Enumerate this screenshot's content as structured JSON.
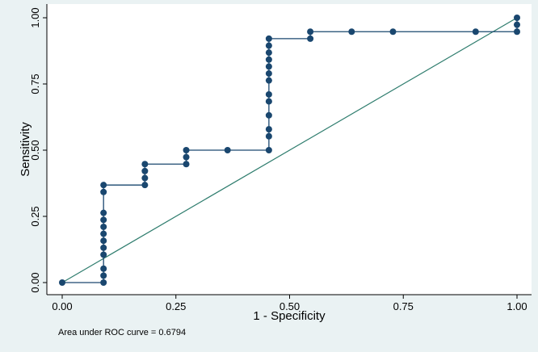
{
  "chart_data": {
    "type": "line",
    "xlabel": "1 - Specificity",
    "ylabel": "Sensitivity",
    "xlim": [
      0,
      1
    ],
    "ylim": [
      0,
      1
    ],
    "x_ticks": [
      "0.00",
      "0.25",
      "0.50",
      "0.75",
      "1.00"
    ],
    "y_ticks": [
      "0.00",
      "0.25",
      "0.50",
      "0.75",
      "1.00"
    ],
    "grid": false,
    "legend": "none",
    "note": "Area under ROC curve = 0.6794",
    "colors": {
      "curve": "#1a476f",
      "reference": "#2f7d6e",
      "plot_background": "#ffffff",
      "page_background": "#eaf2f3"
    },
    "series": [
      {
        "values": [
          [
            0,
            0
          ],
          [
            0.0909,
            0
          ],
          [
            0.0909,
            0.0263
          ],
          [
            0.0909,
            0.0526
          ],
          [
            0.0909,
            0.1053
          ],
          [
            0.0909,
            0.1316
          ],
          [
            0.0909,
            0.1579
          ],
          [
            0.0909,
            0.1842
          ],
          [
            0.0909,
            0.2105
          ],
          [
            0.0909,
            0.2368
          ],
          [
            0.0909,
            0.2632
          ],
          [
            0.0909,
            0.3421
          ],
          [
            0.0909,
            0.3684
          ],
          [
            0.1818,
            0.3684
          ],
          [
            0.1818,
            0.3947
          ],
          [
            0.1818,
            0.4211
          ],
          [
            0.1818,
            0.4474
          ],
          [
            0.2727,
            0.4474
          ],
          [
            0.2727,
            0.4737
          ],
          [
            0.2727,
            0.5
          ],
          [
            0.3636,
            0.5
          ],
          [
            0.4545,
            0.5
          ],
          [
            0.4545,
            0.5526
          ],
          [
            0.4545,
            0.5789
          ],
          [
            0.4545,
            0.6316
          ],
          [
            0.4545,
            0.6842
          ],
          [
            0.4545,
            0.7105
          ],
          [
            0.4545,
            0.7632
          ],
          [
            0.4545,
            0.7895
          ],
          [
            0.4545,
            0.8158
          ],
          [
            0.4545,
            0.8421
          ],
          [
            0.4545,
            0.8684
          ],
          [
            0.4545,
            0.8947
          ],
          [
            0.4545,
            0.9211
          ],
          [
            0.5455,
            0.9211
          ],
          [
            0.5455,
            0.9474
          ],
          [
            0.6364,
            0.9474
          ],
          [
            0.7273,
            0.9474
          ],
          [
            0.9091,
            0.9474
          ],
          [
            1.0,
            0.9474
          ],
          [
            1.0,
            0.9737
          ],
          [
            1.0,
            1.0
          ]
        ]
      },
      {
        "values": [
          [
            0,
            0
          ],
          [
            1,
            1
          ]
        ]
      }
    ]
  }
}
